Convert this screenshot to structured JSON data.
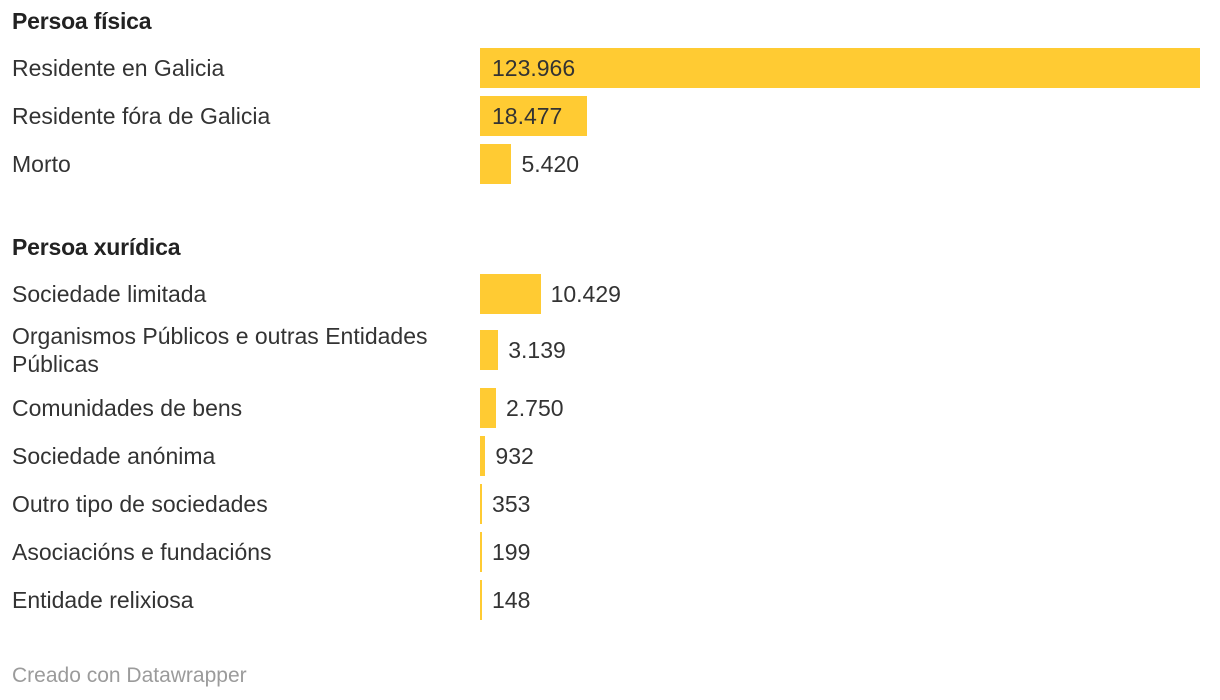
{
  "chart_data": {
    "type": "bar",
    "orientation": "horizontal",
    "bar_color": "#ffcb33",
    "xlim": [
      0,
      123966
    ],
    "groups": [
      {
        "title": "Persoa física",
        "categories": [
          "Residente en Galicia",
          "Residente fóra de Galicia",
          "Morto"
        ],
        "values": [
          123966,
          18477,
          5420
        ],
        "value_labels": [
          "123.966",
          "18.477",
          "5.420"
        ]
      },
      {
        "title": "Persoa xurídica",
        "categories": [
          "Sociedade limitada",
          "Organismos Públicos e outras Entidades Públicas",
          "Comunidades de bens",
          "Sociedade anónima",
          "Outro tipo de sociedades",
          "Asociacións e fundacións",
          "Entidade relixiosa"
        ],
        "values": [
          10429,
          3139,
          2750,
          932,
          353,
          199,
          148
        ],
        "value_labels": [
          "10.429",
          "3.139",
          "2.750",
          "932",
          "353",
          "199",
          "148"
        ]
      }
    ]
  },
  "footer": {
    "credit": "Creado con Datawrapper"
  }
}
